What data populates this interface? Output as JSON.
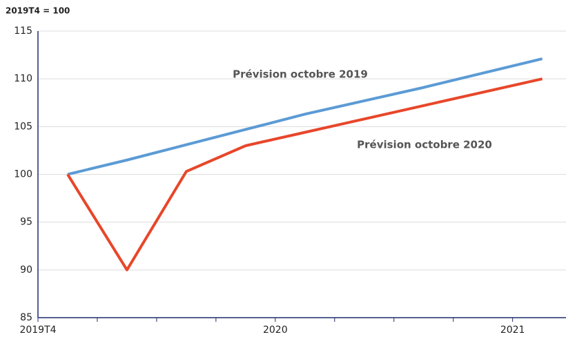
{
  "chart_data": {
    "type": "line",
    "unit_label": "2019T4 = 100",
    "x": [
      0.5,
      1.5,
      2.5,
      3.5,
      4.5,
      5.5,
      6.5,
      7.5,
      8.5
    ],
    "xlim": [
      0,
      8.9
    ],
    "xticks": [
      {
        "value": 0,
        "label": "2019T4"
      },
      {
        "value": 4,
        "label": "2020"
      },
      {
        "value": 8,
        "label": "2021"
      }
    ],
    "xminorticks": [
      1,
      2,
      3,
      5,
      6,
      7
    ],
    "ylim": [
      85,
      115
    ],
    "yticks": [
      85,
      90,
      95,
      100,
      105,
      110,
      115
    ],
    "grid": true,
    "series": [
      {
        "name": "Prévision octobre 2019",
        "color": "#5b9bd5",
        "values": [
          100,
          101.5,
          103.1,
          104.7,
          106.3,
          107.7,
          109.1,
          110.6,
          112.1
        ]
      },
      {
        "name": "Prévision octobre 2020",
        "color": "#e8462a",
        "values": [
          100,
          90,
          100.3,
          103,
          104.4,
          105.8,
          107.2,
          108.6,
          110
        ]
      }
    ]
  }
}
